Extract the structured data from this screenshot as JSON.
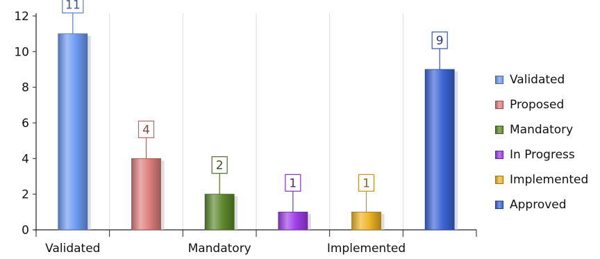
{
  "chart_data": {
    "type": "bar",
    "title": "",
    "xlabel": "",
    "ylabel": "",
    "ylim": [
      0,
      12
    ],
    "yticks": [
      0,
      2,
      4,
      6,
      8,
      10,
      12
    ],
    "grid": "vertical",
    "categories": [
      "Validated",
      "Proposed",
      "Mandatory",
      "In Progress",
      "Implemented",
      "Approved"
    ],
    "xtick_labels": [
      "Validated",
      "",
      "Mandatory",
      "",
      "Implemented",
      ""
    ],
    "values": [
      11,
      4,
      2,
      1,
      1,
      9
    ],
    "data_labels": [
      "11",
      "4",
      "2",
      "1",
      "1",
      "9"
    ],
    "colors": [
      "#6f9cf5",
      "#e07f7f",
      "#5f8a2e",
      "#a040e8",
      "#efb526",
      "#3d66d8"
    ],
    "legend": {
      "position": "right",
      "entries": [
        "Validated",
        "Proposed",
        "Mandatory",
        "In Progress",
        "Implemented",
        "Approved"
      ]
    }
  }
}
